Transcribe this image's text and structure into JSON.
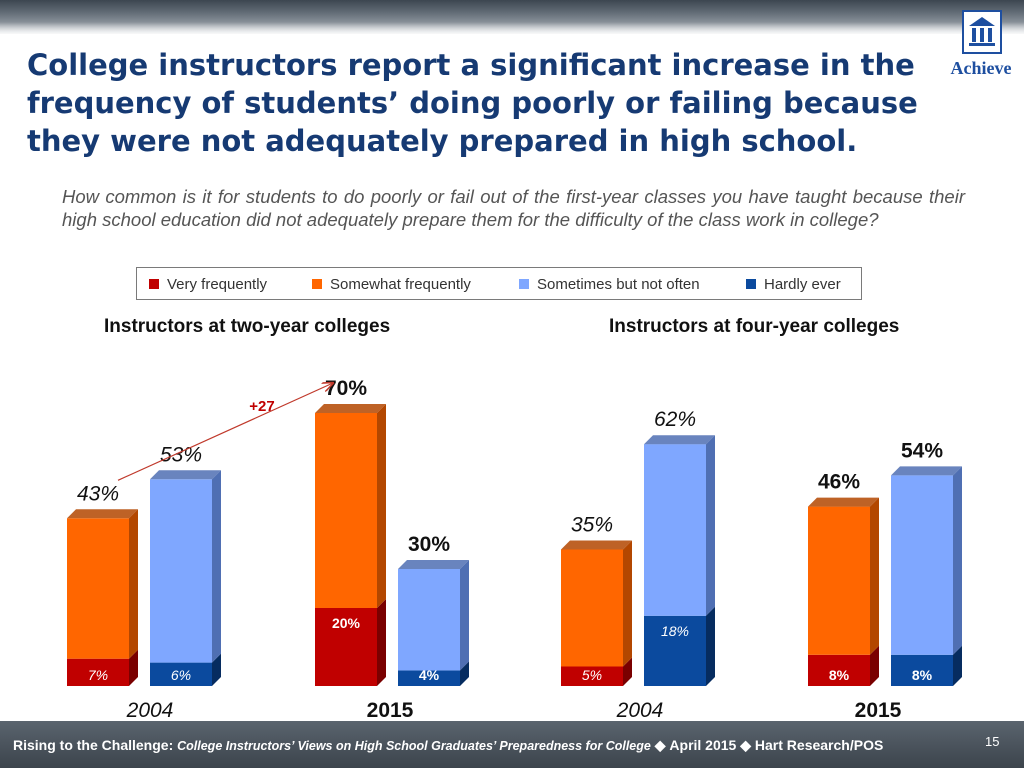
{
  "title": "College instructors report a significant increase in the frequency of students’ doing poorly or failing because they were not adequately prepared in high school.",
  "logo": {
    "text": "Achieve",
    "icon": "school-building-icon"
  },
  "question": "How common is it for students to do poorly or fail out of the first-year classes you have taught because their high school education did not adequately prepare them for the difficulty of the class work in college?",
  "legend": [
    {
      "label": "Very frequently",
      "color": "#c00000"
    },
    {
      "label": "Somewhat frequently",
      "color": "#ff6600"
    },
    {
      "label": "Sometimes but not often",
      "color": "#7fa7ff"
    },
    {
      "label": "Hardly ever",
      "color": "#0b4a9e"
    }
  ],
  "panels": {
    "two_year": "Instructors at two-year colleges",
    "four_year": "Instructors at four-year colleges"
  },
  "chart_data": {
    "type": "bar",
    "stacked": true,
    "panels": [
      {
        "title": "Instructors at two-year colleges",
        "groups": [
          {
            "year": "2004",
            "bars": [
              {
                "total": "43%",
                "segments": [
                  {
                    "series": "Very frequently",
                    "value": 7,
                    "label": "7%"
                  },
                  {
                    "series": "Somewhat frequently",
                    "value": 36
                  }
                ]
              },
              {
                "total": "53%",
                "segments": [
                  {
                    "series": "Hardly ever",
                    "value": 6,
                    "label": "6%"
                  },
                  {
                    "series": "Sometimes but not often",
                    "value": 47
                  }
                ]
              }
            ]
          },
          {
            "year": "2015",
            "bars": [
              {
                "total": "70%",
                "segments": [
                  {
                    "series": "Very frequently",
                    "value": 20,
                    "label": "20%"
                  },
                  {
                    "series": "Somewhat frequently",
                    "value": 50
                  }
                ]
              },
              {
                "total": "30%",
                "segments": [
                  {
                    "series": "Hardly ever",
                    "value": 4,
                    "label": "4%"
                  },
                  {
                    "series": "Sometimes but not often",
                    "value": 26
                  }
                ]
              }
            ]
          }
        ],
        "annotation": {
          "text": "+27"
        }
      },
      {
        "title": "Instructors at four-year colleges",
        "groups": [
          {
            "year": "2004",
            "bars": [
              {
                "total": "35%",
                "segments": [
                  {
                    "series": "Very frequently",
                    "value": 5,
                    "label": "5%"
                  },
                  {
                    "series": "Somewhat frequently",
                    "value": 30
                  }
                ]
              },
              {
                "total": "62%",
                "segments": [
                  {
                    "series": "Hardly ever",
                    "value": 18,
                    "label": "18%"
                  },
                  {
                    "series": "Sometimes but not often",
                    "value": 44
                  }
                ]
              }
            ]
          },
          {
            "year": "2015",
            "bars": [
              {
                "total": "46%",
                "segments": [
                  {
                    "series": "Very frequently",
                    "value": 8,
                    "label": "8%"
                  },
                  {
                    "series": "Somewhat frequently",
                    "value": 38
                  }
                ]
              },
              {
                "total": "54%",
                "segments": [
                  {
                    "series": "Hardly ever",
                    "value": 8,
                    "label": "8%"
                  },
                  {
                    "series": "Sometimes but not often",
                    "value": 46
                  }
                ]
              }
            ]
          }
        ]
      }
    ]
  },
  "footer": {
    "lead": "Rising to the Challenge:",
    "subtitle": "College Instructors’ Views on High School Graduates’ Preparedness for College",
    "date": "April 2015",
    "source": "Hart Research/POS",
    "separator": "◆",
    "page": "15"
  }
}
